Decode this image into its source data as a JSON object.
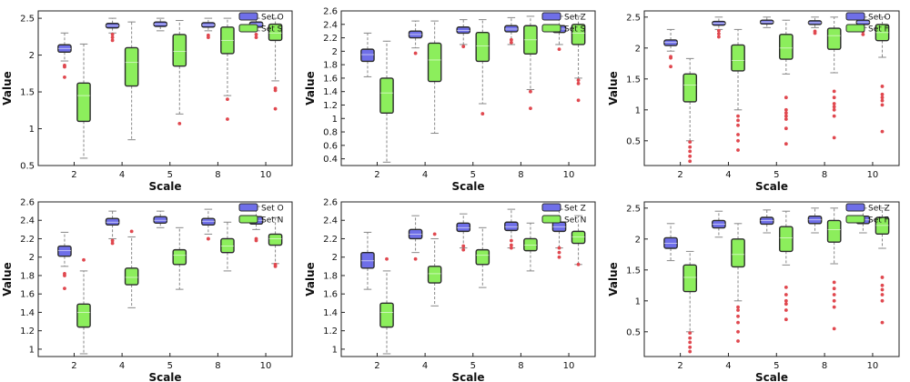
{
  "colors": {
    "blue_box": "#6f6fe8",
    "green_box": "#8cee5c",
    "outlier": "#e0484f",
    "whisker": "#888888"
  },
  "chart_data": [
    {
      "type": "boxplot",
      "xlabel": "Scale",
      "ylabel": "Value",
      "categories": [
        "2",
        "4",
        "5",
        "8",
        "10"
      ],
      "ylim": [
        0.5,
        2.6
      ],
      "yticks": [
        0.5,
        1,
        1.5,
        2,
        2.5
      ],
      "series": [
        {
          "name": "Set O",
          "color": "#6f6fe8",
          "boxes": [
            {
              "min": 1.92,
              "q1": 2.04,
              "median": 2.09,
              "q3": 2.14,
              "max": 2.3,
              "outliers": [
                1.86,
                1.84,
                1.7
              ]
            },
            {
              "min": 2.3,
              "q1": 2.37,
              "median": 2.4,
              "q3": 2.43,
              "max": 2.5,
              "outliers": [
                2.28,
                2.24,
                2.2
              ]
            },
            {
              "min": 2.33,
              "q1": 2.39,
              "median": 2.42,
              "q3": 2.45,
              "max": 2.5,
              "outliers": []
            },
            {
              "min": 2.33,
              "q1": 2.38,
              "median": 2.41,
              "q3": 2.44,
              "max": 2.5,
              "outliers": [
                2.27,
                2.24
              ]
            },
            {
              "min": 2.33,
              "q1": 2.38,
              "median": 2.42,
              "q3": 2.45,
              "max": 2.5,
              "outliers": [
                2.28,
                2.24
              ]
            }
          ]
        },
        {
          "name": "Set S",
          "color": "#8cee5c",
          "boxes": [
            {
              "min": 0.6,
              "q1": 1.1,
              "median": 1.45,
              "q3": 1.62,
              "max": 2.15,
              "outliers": []
            },
            {
              "min": 0.85,
              "q1": 1.58,
              "median": 1.9,
              "q3": 2.1,
              "max": 2.45,
              "outliers": []
            },
            {
              "min": 1.2,
              "q1": 1.85,
              "median": 2.05,
              "q3": 2.28,
              "max": 2.47,
              "outliers": [
                1.07
              ]
            },
            {
              "min": 1.45,
              "q1": 2.02,
              "median": 2.2,
              "q3": 2.38,
              "max": 2.5,
              "outliers": [
                1.4,
                1.13
              ]
            },
            {
              "min": 1.65,
              "q1": 2.2,
              "median": 2.3,
              "q3": 2.42,
              "max": 2.5,
              "outliers": [
                1.55,
                1.52,
                1.27
              ]
            }
          ]
        }
      ]
    },
    {
      "type": "boxplot",
      "xlabel": "Scale",
      "ylabel": "Value",
      "categories": [
        "2",
        "4",
        "5",
        "8",
        "10"
      ],
      "ylim": [
        0.3,
        2.6
      ],
      "yticks": [
        0.4,
        0.6,
        0.8,
        1,
        1.2,
        1.4,
        1.6,
        1.8,
        2,
        2.2,
        2.4,
        2.6
      ],
      "series": [
        {
          "name": "Set Z",
          "color": "#6f6fe8",
          "boxes": [
            {
              "min": 1.62,
              "q1": 1.85,
              "median": 1.95,
              "q3": 2.03,
              "max": 2.27,
              "outliers": []
            },
            {
              "min": 2.05,
              "q1": 2.2,
              "median": 2.25,
              "q3": 2.3,
              "max": 2.45,
              "outliers": [
                1.97
              ]
            },
            {
              "min": 2.1,
              "q1": 2.27,
              "median": 2.31,
              "q3": 2.36,
              "max": 2.47,
              "outliers": [
                2.07
              ]
            },
            {
              "min": 2.1,
              "q1": 2.29,
              "median": 2.33,
              "q3": 2.38,
              "max": 2.5,
              "outliers": [
                2.17,
                2.13
              ]
            },
            {
              "min": 2.1,
              "q1": 2.28,
              "median": 2.33,
              "q3": 2.38,
              "max": 2.52,
              "outliers": [
                2.03
              ]
            }
          ]
        },
        {
          "name": "Set S",
          "color": "#8cee5c",
          "boxes": [
            {
              "min": 0.35,
              "q1": 1.08,
              "median": 1.38,
              "q3": 1.6,
              "max": 2.15,
              "outliers": []
            },
            {
              "min": 0.78,
              "q1": 1.55,
              "median": 1.87,
              "q3": 2.12,
              "max": 2.45,
              "outliers": []
            },
            {
              "min": 1.22,
              "q1": 1.85,
              "median": 2.08,
              "q3": 2.28,
              "max": 2.47,
              "outliers": [
                1.07
              ]
            },
            {
              "min": 1.43,
              "q1": 1.96,
              "median": 2.17,
              "q3": 2.38,
              "max": 2.52,
              "outliers": [
                1.4,
                1.15
              ]
            },
            {
              "min": 1.6,
              "q1": 2.1,
              "median": 2.27,
              "q3": 2.4,
              "max": 2.52,
              "outliers": [
                1.57,
                1.52,
                1.27
              ]
            }
          ]
        }
      ]
    },
    {
      "type": "boxplot",
      "xlabel": "Scale",
      "ylabel": "Value",
      "categories": [
        "2",
        "4",
        "5",
        "8",
        "10"
      ],
      "ylim": [
        0.1,
        2.6
      ],
      "yticks": [
        0.5,
        1,
        1.5,
        2,
        2.5
      ],
      "series": [
        {
          "name": "Set O",
          "color": "#6f6fe8",
          "boxes": [
            {
              "min": 1.95,
              "q1": 2.04,
              "median": 2.09,
              "q3": 2.13,
              "max": 2.3,
              "outliers": [
                1.86,
                1.84,
                1.7
              ]
            },
            {
              "min": 2.3,
              "q1": 2.37,
              "median": 2.4,
              "q3": 2.43,
              "max": 2.5,
              "outliers": [
                2.28,
                2.23,
                2.18
              ]
            },
            {
              "min": 2.33,
              "q1": 2.39,
              "median": 2.42,
              "q3": 2.45,
              "max": 2.5,
              "outliers": []
            },
            {
              "min": 2.33,
              "q1": 2.38,
              "median": 2.41,
              "q3": 2.44,
              "max": 2.5,
              "outliers": [
                2.27,
                2.24
              ]
            },
            {
              "min": 2.33,
              "q1": 2.38,
              "median": 2.42,
              "q3": 2.45,
              "max": 2.5,
              "outliers": [
                2.27,
                2.22
              ]
            }
          ]
        },
        {
          "name": "Set F",
          "color": "#8cee5c",
          "boxes": [
            {
              "min": 0.5,
              "q1": 1.13,
              "median": 1.4,
              "q3": 1.58,
              "max": 1.83,
              "outliers": [
                0.48,
                0.4,
                0.33,
                0.25,
                0.17
              ]
            },
            {
              "min": 1.0,
              "q1": 1.63,
              "median": 1.8,
              "q3": 2.05,
              "max": 2.3,
              "outliers": [
                0.9,
                0.83,
                0.75,
                0.6,
                0.5,
                0.35
              ]
            },
            {
              "min": 1.58,
              "q1": 1.82,
              "median": 2.0,
              "q3": 2.22,
              "max": 2.45,
              "outliers": [
                1.2,
                1.0,
                0.95,
                0.9,
                0.85,
                0.7,
                0.45
              ]
            },
            {
              "min": 1.6,
              "q1": 1.98,
              "median": 2.2,
              "q3": 2.32,
              "max": 2.5,
              "outliers": [
                1.3,
                1.2,
                1.1,
                1.05,
                1.0,
                0.9,
                0.55
              ]
            },
            {
              "min": 1.85,
              "q1": 2.12,
              "median": 2.25,
              "q3": 2.38,
              "max": 2.5,
              "outliers": [
                1.38,
                1.25,
                1.2,
                1.15,
                1.08,
                0.65
              ]
            }
          ]
        }
      ]
    },
    {
      "type": "boxplot",
      "xlabel": "Scale",
      "ylabel": "Value",
      "categories": [
        "2",
        "4",
        "5",
        "8",
        "10"
      ],
      "ylim": [
        0.92,
        2.6
      ],
      "yticks": [
        1,
        1.2,
        1.4,
        1.6,
        1.8,
        2,
        2.2,
        2.4,
        2.6
      ],
      "series": [
        {
          "name": "Set O",
          "color": "#6f6fe8",
          "boxes": [
            {
              "min": 1.9,
              "q1": 2.01,
              "median": 2.07,
              "q3": 2.12,
              "max": 2.27,
              "outliers": [
                1.82,
                1.8,
                1.66
              ]
            },
            {
              "min": 2.2,
              "q1": 2.35,
              "median": 2.38,
              "q3": 2.42,
              "max": 2.5,
              "outliers": [
                2.18,
                2.15
              ]
            },
            {
              "min": 2.32,
              "q1": 2.37,
              "median": 2.4,
              "q3": 2.44,
              "max": 2.5,
              "outliers": []
            },
            {
              "min": 2.25,
              "q1": 2.35,
              "median": 2.39,
              "q3": 2.42,
              "max": 2.52,
              "outliers": [
                2.2,
                2.2
              ]
            },
            {
              "min": 2.3,
              "q1": 2.36,
              "median": 2.4,
              "q3": 2.44,
              "max": 2.55,
              "outliers": [
                2.2,
                2.18
              ]
            }
          ]
        },
        {
          "name": "Set N",
          "color": "#8cee5c",
          "boxes": [
            {
              "min": 0.95,
              "q1": 1.24,
              "median": 1.4,
              "q3": 1.49,
              "max": 1.85,
              "outliers": [
                1.97
              ]
            },
            {
              "min": 1.45,
              "q1": 1.7,
              "median": 1.78,
              "q3": 1.88,
              "max": 2.22,
              "outliers": [
                2.28
              ]
            },
            {
              "min": 1.65,
              "q1": 1.92,
              "median": 2.02,
              "q3": 2.08,
              "max": 2.32,
              "outliers": []
            },
            {
              "min": 1.85,
              "q1": 2.05,
              "median": 2.12,
              "q3": 2.2,
              "max": 2.38,
              "outliers": []
            },
            {
              "min": 1.93,
              "q1": 2.13,
              "median": 2.2,
              "q3": 2.25,
              "max": 2.43,
              "outliers": [
                1.92,
                1.9
              ]
            }
          ]
        }
      ]
    },
    {
      "type": "boxplot",
      "xlabel": "Scale",
      "ylabel": "Value",
      "categories": [
        "2",
        "4",
        "5",
        "8",
        "10"
      ],
      "ylim": [
        0.92,
        2.6
      ],
      "yticks": [
        1,
        1.2,
        1.4,
        1.6,
        1.8,
        2,
        2.2,
        2.4,
        2.6
      ],
      "series": [
        {
          "name": "Set Z",
          "color": "#6f6fe8",
          "boxes": [
            {
              "min": 1.65,
              "q1": 1.88,
              "median": 1.96,
              "q3": 2.05,
              "max": 2.27,
              "outliers": []
            },
            {
              "min": 2.05,
              "q1": 2.2,
              "median": 2.25,
              "q3": 2.3,
              "max": 2.45,
              "outliers": [
                1.98
              ]
            },
            {
              "min": 2.1,
              "q1": 2.28,
              "median": 2.32,
              "q3": 2.37,
              "max": 2.47,
              "outliers": [
                2.12,
                2.08
              ]
            },
            {
              "min": 2.1,
              "q1": 2.29,
              "median": 2.33,
              "q3": 2.38,
              "max": 2.52,
              "outliers": [
                2.18,
                2.13,
                2.1
              ]
            },
            {
              "min": 2.1,
              "q1": 2.28,
              "median": 2.33,
              "q3": 2.38,
              "max": 2.52,
              "outliers": [
                2.1,
                2.05,
                2.0
              ]
            }
          ]
        },
        {
          "name": "Set N",
          "color": "#8cee5c",
          "boxes": [
            {
              "min": 0.95,
              "q1": 1.24,
              "median": 1.4,
              "q3": 1.5,
              "max": 1.85,
              "outliers": [
                1.98
              ]
            },
            {
              "min": 1.47,
              "q1": 1.72,
              "median": 1.82,
              "q3": 1.9,
              "max": 2.2,
              "outliers": [
                2.25
              ]
            },
            {
              "min": 1.67,
              "q1": 1.92,
              "median": 2.02,
              "q3": 2.08,
              "max": 2.32,
              "outliers": []
            },
            {
              "min": 1.85,
              "q1": 2.07,
              "median": 2.13,
              "q3": 2.2,
              "max": 2.37,
              "outliers": []
            },
            {
              "min": 1.92,
              "q1": 2.15,
              "median": 2.22,
              "q3": 2.28,
              "max": 2.45,
              "outliers": [
                1.92
              ]
            }
          ]
        }
      ]
    },
    {
      "type": "boxplot",
      "xlabel": "Scale",
      "ylabel": "Value",
      "categories": [
        "2",
        "4",
        "5",
        "8",
        "10"
      ],
      "ylim": [
        0.1,
        2.6
      ],
      "yticks": [
        0.5,
        1,
        1.5,
        2,
        2.5
      ],
      "series": [
        {
          "name": "Set Z",
          "color": "#6f6fe8",
          "boxes": [
            {
              "min": 1.65,
              "q1": 1.85,
              "median": 1.93,
              "q3": 2.02,
              "max": 2.25,
              "outliers": []
            },
            {
              "min": 2.03,
              "q1": 2.18,
              "median": 2.24,
              "q3": 2.3,
              "max": 2.45,
              "outliers": []
            },
            {
              "min": 2.1,
              "q1": 2.24,
              "median": 2.3,
              "q3": 2.35,
              "max": 2.47,
              "outliers": []
            },
            {
              "min": 2.1,
              "q1": 2.25,
              "median": 2.31,
              "q3": 2.37,
              "max": 2.5,
              "outliers": []
            },
            {
              "min": 2.1,
              "q1": 2.25,
              "median": 2.31,
              "q3": 2.37,
              "max": 2.5,
              "outliers": []
            }
          ]
        },
        {
          "name": "Set F",
          "color": "#8cee5c",
          "boxes": [
            {
              "min": 0.5,
              "q1": 1.15,
              "median": 1.38,
              "q3": 1.58,
              "max": 1.8,
              "outliers": [
                0.48,
                0.4,
                0.33,
                0.25,
                0.18
              ]
            },
            {
              "min": 1.0,
              "q1": 1.55,
              "median": 1.75,
              "q3": 2.0,
              "max": 2.25,
              "outliers": [
                0.9,
                0.85,
                0.75,
                0.65,
                0.5,
                0.35
              ]
            },
            {
              "min": 1.58,
              "q1": 1.8,
              "median": 2.02,
              "q3": 2.2,
              "max": 2.45,
              "outliers": [
                1.22,
                1.1,
                1.0,
                0.95,
                0.85,
                0.7
              ]
            },
            {
              "min": 1.6,
              "q1": 1.95,
              "median": 2.15,
              "q3": 2.3,
              "max": 2.5,
              "outliers": [
                1.3,
                1.2,
                1.1,
                1.0,
                0.9,
                0.55
              ]
            },
            {
              "min": 1.85,
              "q1": 2.08,
              "median": 2.22,
              "q3": 2.35,
              "max": 2.5,
              "outliers": [
                1.38,
                1.25,
                1.18,
                1.1,
                1.0,
                0.65
              ]
            }
          ]
        }
      ]
    }
  ]
}
